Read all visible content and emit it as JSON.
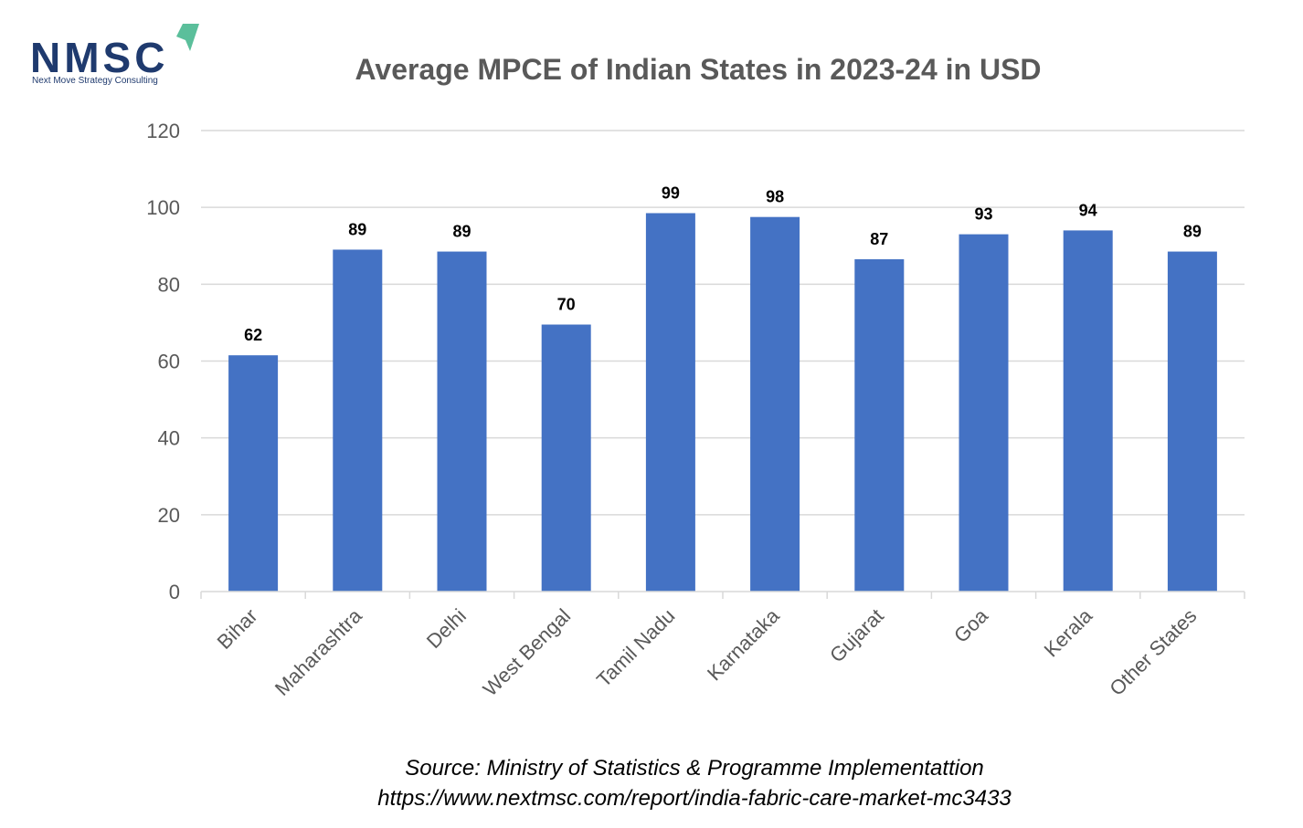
{
  "logo": {
    "name": "NMSC",
    "tagline": "Next Move Strategy Consulting",
    "colors": {
      "text": "#1f3a6e",
      "accent": "#5bbf9b"
    }
  },
  "chart_data": {
    "type": "bar",
    "title": "Average MPCE of Indian States in 2023-24 in USD",
    "xlabel": "",
    "ylabel": "",
    "categories": [
      "Bihar",
      "Maharashtra",
      "Delhi",
      "West Bengal",
      "Tamil Nadu",
      "Karnataka",
      "Gujarat",
      "Goa",
      "Kerala",
      "Other States"
    ],
    "values": [
      61.5,
      89,
      88.5,
      69.5,
      98.5,
      97.5,
      86.5,
      93,
      94,
      88.5
    ],
    "data_labels": [
      "62",
      "89",
      "89",
      "70",
      "99",
      "98",
      "87",
      "93",
      "94",
      "89"
    ],
    "ylim": [
      0,
      120
    ],
    "yticks": [
      0,
      20,
      40,
      60,
      80,
      100,
      120
    ],
    "grid": true,
    "legend": "none",
    "colors": {
      "bar": "#4472c4",
      "grid": "#d9d9d9",
      "axis_text": "#595959",
      "title": "#595959",
      "data_label": "#000000"
    }
  },
  "source": {
    "line1": "Source: Ministry of Statistics & Programme Implementattion",
    "line2": "https://www.nextmsc.com/report/india-fabric-care-market-mc3433"
  }
}
